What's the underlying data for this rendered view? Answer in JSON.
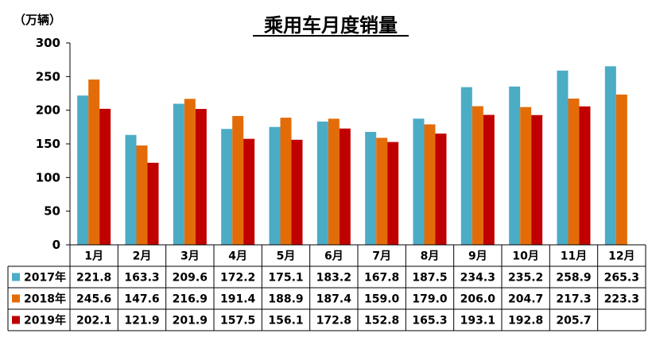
{
  "chart_data": {
    "type": "bar",
    "title": "乘用车月度销量",
    "unit_label": "（万辆）",
    "ylim": [
      0,
      300
    ],
    "yticks": [
      "0",
      "50",
      "100",
      "150",
      "200",
      "250",
      "300"
    ],
    "grid": false,
    "legend": "data-table",
    "categories": [
      "1月",
      "2月",
      "3月",
      "4月",
      "5月",
      "6月",
      "7月",
      "8月",
      "9月",
      "10月",
      "11月",
      "12月"
    ],
    "series": [
      {
        "name": "2017年",
        "color": "#4BACC6",
        "values": [
          221.8,
          163.3,
          209.6,
          172.2,
          175.1,
          183.2,
          167.8,
          187.5,
          234.3,
          235.2,
          258.9,
          265.3
        ],
        "labels": [
          "221.8",
          "163.3",
          "209.6",
          "172.2",
          "175.1",
          "183.2",
          "167.8",
          "187.5",
          "234.3",
          "235.2",
          "258.9",
          "265.3"
        ]
      },
      {
        "name": "2018年",
        "color": "#E36C09",
        "values": [
          245.6,
          147.6,
          216.9,
          191.4,
          188.9,
          187.4,
          159.0,
          179.0,
          206.0,
          204.7,
          217.3,
          223.3
        ],
        "labels": [
          "245.6",
          "147.6",
          "216.9",
          "191.4",
          "188.9",
          "187.4",
          "159.0",
          "179.0",
          "206.0",
          "204.7",
          "217.3",
          "223.3"
        ]
      },
      {
        "name": "2019年",
        "color": "#C00000",
        "values": [
          202.1,
          121.9,
          201.9,
          157.5,
          156.1,
          172.8,
          152.8,
          165.3,
          193.1,
          192.8,
          205.7,
          null
        ],
        "labels": [
          "202.1",
          "121.9",
          "201.9",
          "157.5",
          "156.1",
          "172.8",
          "152.8",
          "165.3",
          "193.1",
          "192.8",
          "205.7",
          ""
        ]
      }
    ]
  }
}
